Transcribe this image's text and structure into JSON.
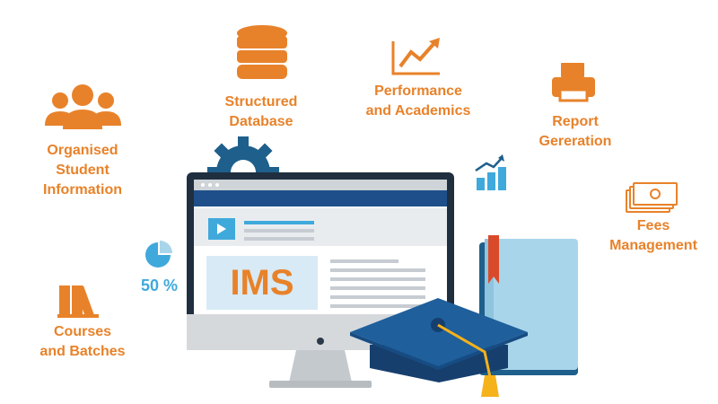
{
  "center": {
    "screen_title": "IMS"
  },
  "features": [
    {
      "id": "organised-student-information",
      "icon": "users-icon",
      "lines": [
        "Organised",
        "Student",
        "Information"
      ]
    },
    {
      "id": "structured-database",
      "icon": "database-icon",
      "lines": [
        "Structured",
        "Database"
      ]
    },
    {
      "id": "performance-academics",
      "icon": "growth-chart-icon",
      "lines": [
        "Performance",
        "and Academics"
      ]
    },
    {
      "id": "report-generation",
      "icon": "printer-icon",
      "lines": [
        "Report",
        "Gereration"
      ]
    },
    {
      "id": "fees-management",
      "icon": "banknotes-icon",
      "lines": [
        "Fees",
        "Management"
      ]
    },
    {
      "id": "courses-batches",
      "icon": "books-icon",
      "lines": [
        "Courses",
        "and Batches"
      ]
    }
  ],
  "pie_indicator": {
    "text": "50 %"
  },
  "colors": {
    "accent": "#e8822a",
    "blue": "#3fa9dc",
    "dark_blue": "#1e5f8c",
    "navy": "#1f4f8a",
    "gray": "#d6d9dc"
  }
}
